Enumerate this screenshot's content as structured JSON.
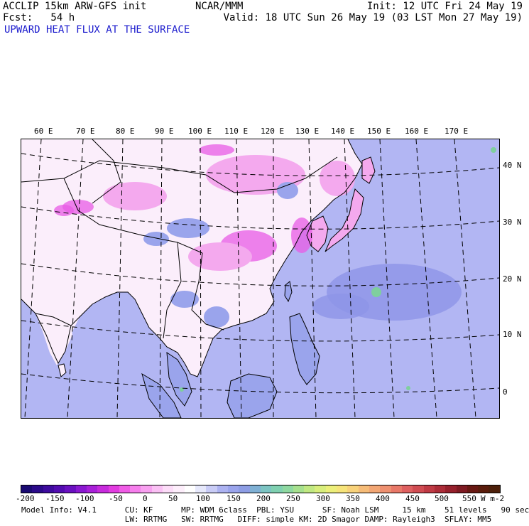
{
  "header": {
    "line1_left": "ACCLIP 15km ARW-GFS init",
    "line1_center": "NCAR/MMM",
    "line1_right": "Init: 12 UTC Fri 24 May 19",
    "line2_left": "Fcst:   54 h",
    "line2_right": "Valid: 18 UTC Sun 26 May 19 (03 LST Mon 27 May 19)",
    "field_title": "UPWARD HEAT FLUX AT THE SURFACE"
  },
  "map": {
    "lon_labels": [
      "60 E",
      "70 E",
      "80 E",
      "90 E",
      "100 E",
      "110 E",
      "120 E",
      "130 E",
      "140 E",
      "150 E",
      "160 E",
      "170 E"
    ],
    "lat_labels": [
      "40 N",
      "30 N",
      "20 N",
      "10 N",
      "0"
    ],
    "colors": {
      "ocean": "#b2b6f3",
      "land_neutral": "#fbeefb",
      "land_pink": "#f4a9ee",
      "land_magenta": "#e85be6",
      "land_bluish": "#9aa4ec",
      "ocean_deep": "#8d95e7",
      "green_spot": "#7fcf9e"
    }
  },
  "colorbar": {
    "colors": [
      "#1a0a72",
      "#2b0a8a",
      "#3e0b9e",
      "#520cb0",
      "#6a10c0",
      "#8a18d0",
      "#a820d8",
      "#c72bdc",
      "#e23ce0",
      "#f05ce6",
      "#f67eec",
      "#f8a0f0",
      "#fac0f4",
      "#fcdcf8",
      "#fdeefb",
      "#ffffff",
      "#e6e8fb",
      "#c9ccf6",
      "#acb2f1",
      "#9aa4ec",
      "#8d9de4",
      "#7fb0d4",
      "#7cc4c2",
      "#7fd0b0",
      "#8ed8a0",
      "#a6e08e",
      "#c0e882",
      "#d8ee7c",
      "#ecef7a",
      "#f6e47a",
      "#f8d27a",
      "#f6bc78",
      "#f2a674",
      "#ee9070",
      "#e87868",
      "#de6060",
      "#d04c52",
      "#bf3a44",
      "#ac2c38",
      "#96202c",
      "#7e1a22",
      "#681812",
      "#5a1c0c",
      "#4d1f0a"
    ],
    "ticks": [
      "-200",
      "-150",
      "-100",
      "-50",
      "0",
      "50",
      "100",
      "150",
      "200",
      "250",
      "300",
      "350",
      "400",
      "450",
      "500",
      "550"
    ],
    "units": "W m-2"
  },
  "footer": {
    "line1": "Model Info: V4.1      CU: KF      MP: WDM 6class  PBL: YSU      SF: Noah LSM     15 km    51 levels   90 sec",
    "line2": "                      LW: RRTMG   SW: RRTMG   DIFF: simple KM: 2D Smagor DAMP: Rayleigh3  SFLAY: MM5"
  }
}
